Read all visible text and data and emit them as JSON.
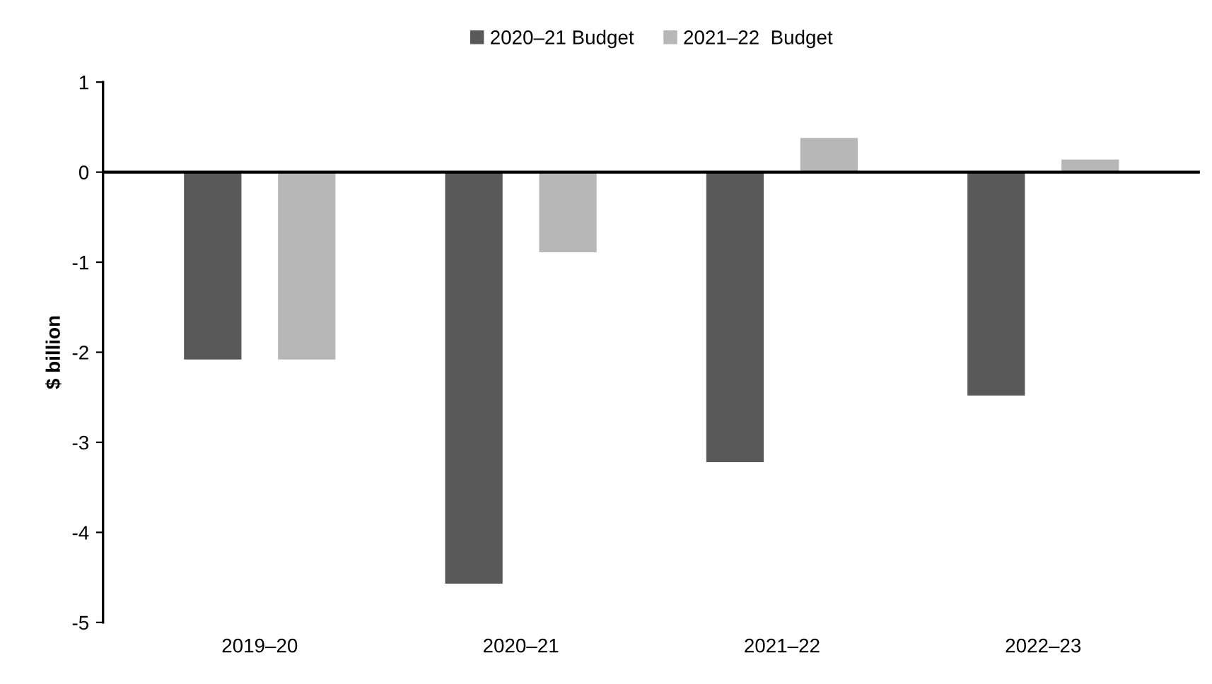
{
  "chart_data": {
    "type": "bar",
    "ylabel": "$ billion",
    "categories": [
      "2019–20",
      "2020–21",
      "2021–22",
      "2022–23"
    ],
    "series": [
      {
        "name": "2020–21 Budget",
        "color": "#595959",
        "values": [
          -2.08,
          -4.57,
          -3.22,
          -2.48
        ]
      },
      {
        "name": "2021–22  Budget",
        "color": "#b7b7b7",
        "values": [
          -2.08,
          -0.89,
          0.38,
          0.14
        ]
      }
    ],
    "ylim": [
      -5,
      1
    ],
    "yticks": [
      -5,
      -4,
      -3,
      -2,
      -1,
      0,
      1
    ],
    "ref_lines": [
      {
        "axis": "y",
        "value": 0,
        "color": "#000000"
      }
    ],
    "grid": false,
    "legend": "top"
  }
}
